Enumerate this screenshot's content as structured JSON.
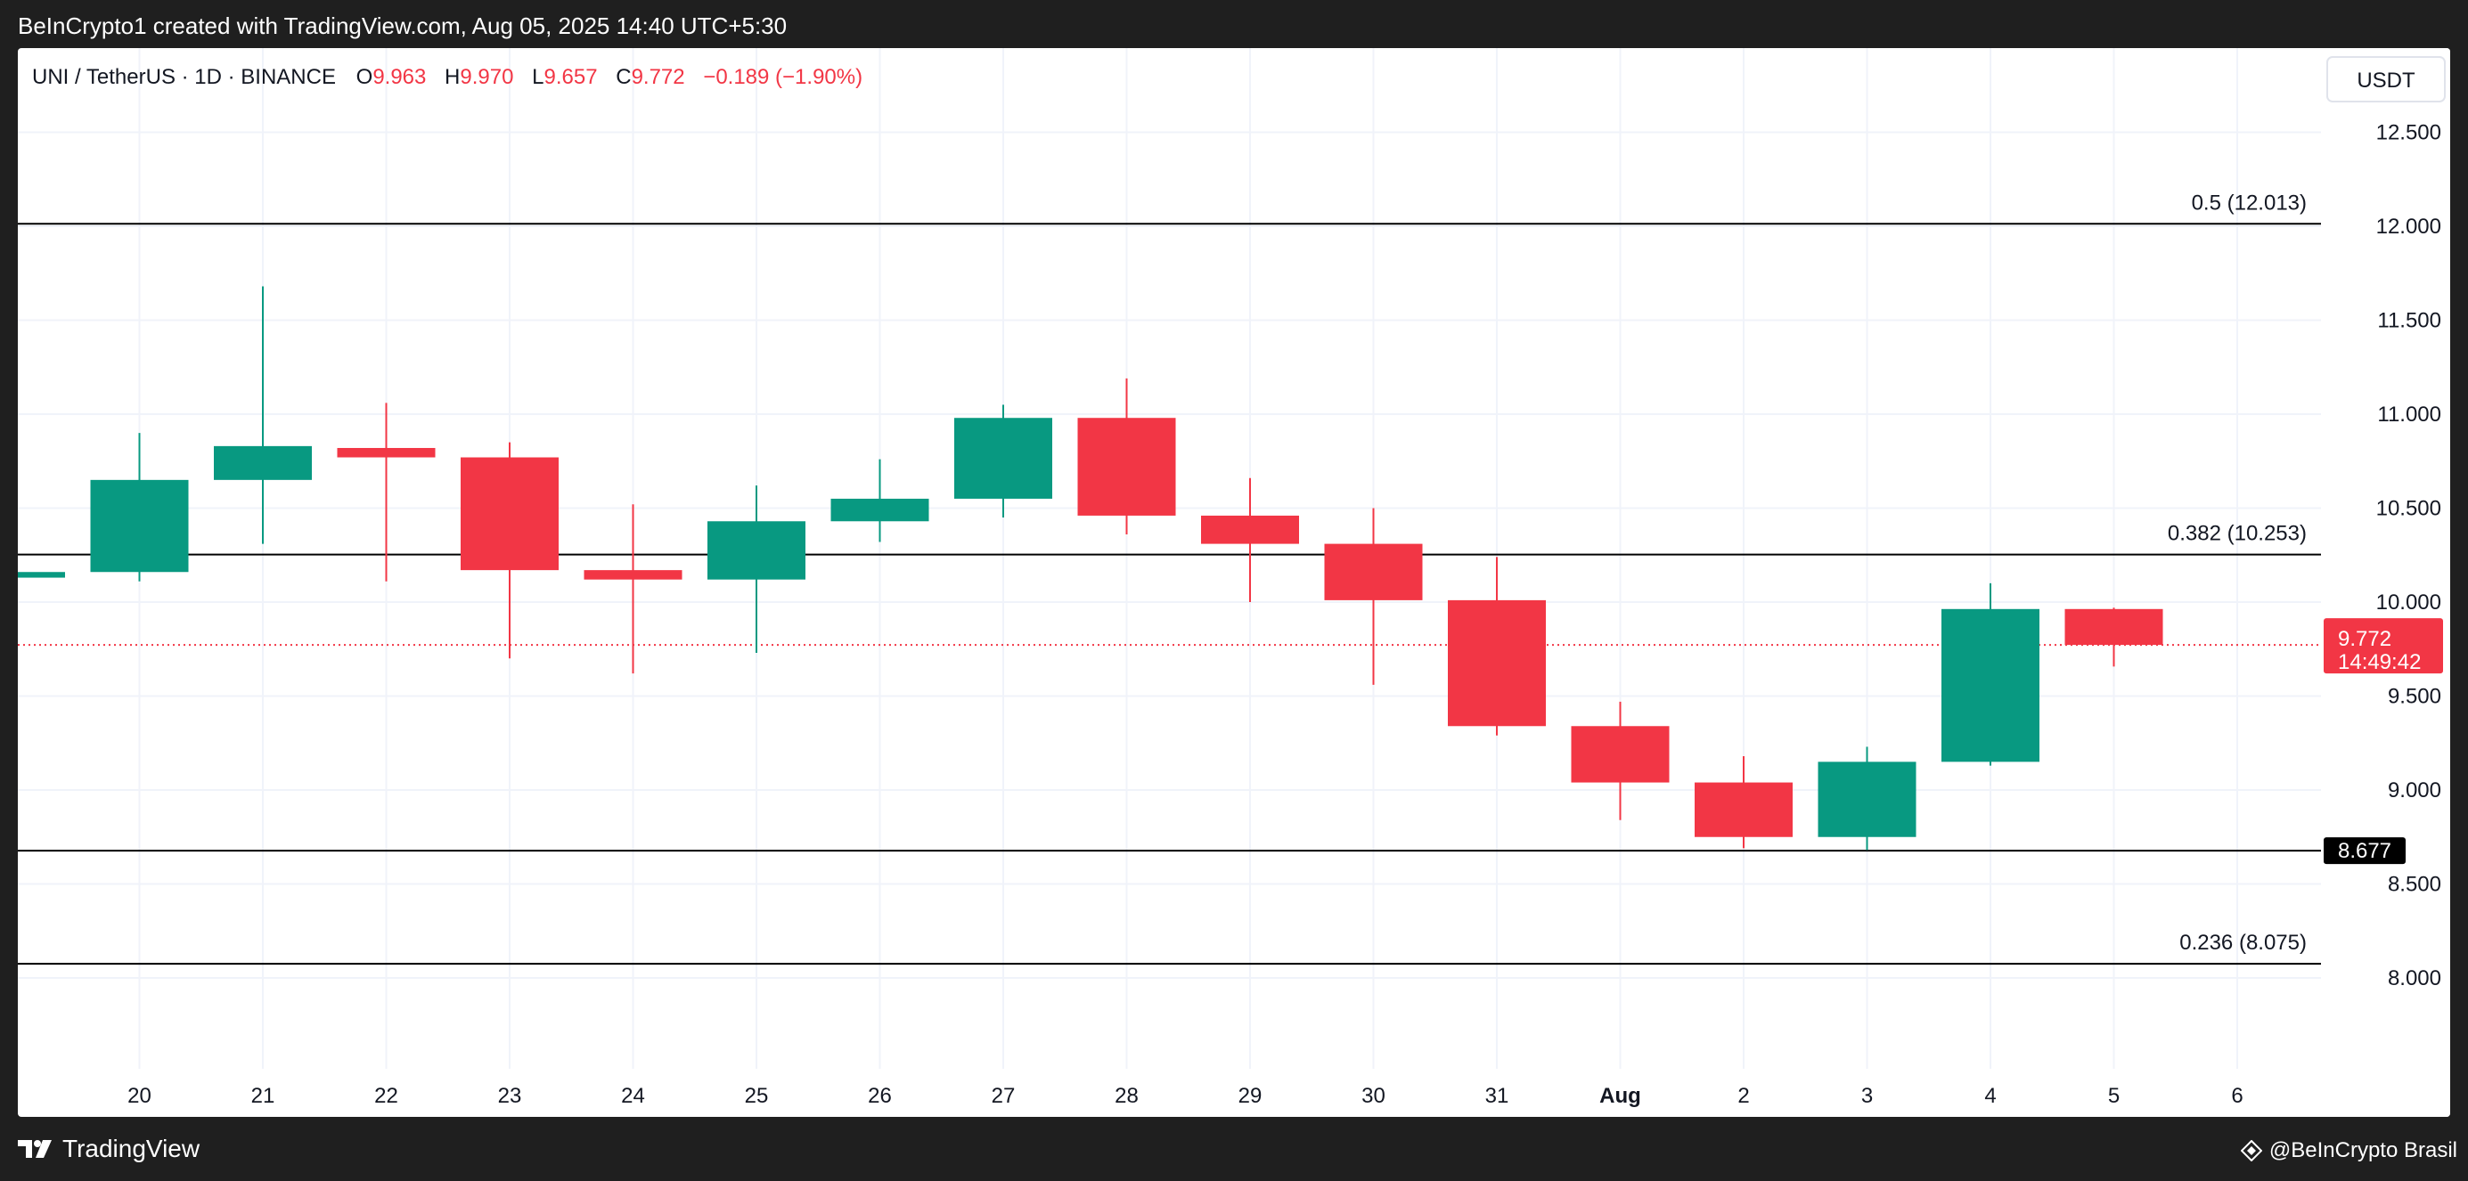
{
  "header": {
    "attribution": "BeInCrypto1 created with TradingView.com, Aug 05, 2025 14:40 UTC+5:30"
  },
  "legend": {
    "symbol": "UNI / TetherUS · 1D · BINANCE",
    "o_label": "O",
    "o_value": "9.963",
    "h_label": "H",
    "h_value": "9.970",
    "l_label": "L",
    "l_value": "9.657",
    "c_label": "C",
    "c_value": "9.772",
    "change": "−0.189 (−1.90%)"
  },
  "price_axis": {
    "currency": "USDT",
    "ticks": [
      "12.500",
      "12.000",
      "11.500",
      "11.000",
      "10.500",
      "10.000",
      "9.500",
      "9.000",
      "8.500",
      "8.000"
    ],
    "current_price": "9.772",
    "countdown": "14:49:42",
    "support_label": "8.677"
  },
  "fib_levels": [
    {
      "label": "0.5 (12.013)",
      "value": 12.013
    },
    {
      "label": "0.382 (10.253)",
      "value": 10.253
    },
    {
      "label": "0.236 (8.075)",
      "value": 8.075
    }
  ],
  "footer": {
    "brand": "TradingView",
    "credit": "@BeInCrypto Brasil"
  },
  "colors": {
    "up": "#089981",
    "down": "#f23645",
    "line": "#000000",
    "grid": "#f0f3fa",
    "text": "#131722"
  },
  "chart_data": {
    "type": "candlestick",
    "symbol": "UNI / TetherUS",
    "interval": "1D",
    "exchange": "BINANCE",
    "ylim": [
      7.5,
      12.75
    ],
    "x_ticks": [
      "20",
      "21",
      "22",
      "23",
      "24",
      "25",
      "26",
      "27",
      "28",
      "29",
      "30",
      "31",
      "Aug",
      "2",
      "3",
      "4",
      "5",
      "6"
    ],
    "candles": [
      {
        "date": "Jul 19",
        "open": 10.13,
        "high": 10.16,
        "low": 10.1,
        "close": 10.16
      },
      {
        "date": "Jul 20",
        "open": 10.16,
        "high": 10.9,
        "low": 10.11,
        "close": 10.65
      },
      {
        "date": "Jul 21",
        "open": 10.65,
        "high": 11.68,
        "low": 10.31,
        "close": 10.83
      },
      {
        "date": "Jul 22",
        "open": 10.82,
        "high": 11.06,
        "low": 10.11,
        "close": 10.77
      },
      {
        "date": "Jul 23",
        "open": 10.77,
        "high": 10.85,
        "low": 9.7,
        "close": 10.17
      },
      {
        "date": "Jul 24",
        "open": 10.17,
        "high": 10.52,
        "low": 9.62,
        "close": 10.12
      },
      {
        "date": "Jul 25",
        "open": 10.12,
        "high": 10.62,
        "low": 9.73,
        "close": 10.43
      },
      {
        "date": "Jul 26",
        "open": 10.43,
        "high": 10.76,
        "low": 10.32,
        "close": 10.55
      },
      {
        "date": "Jul 27",
        "open": 10.55,
        "high": 11.05,
        "low": 10.45,
        "close": 10.98
      },
      {
        "date": "Jul 28",
        "open": 10.98,
        "high": 11.19,
        "low": 10.36,
        "close": 10.46
      },
      {
        "date": "Jul 29",
        "open": 10.46,
        "high": 10.66,
        "low": 10.0,
        "close": 10.31
      },
      {
        "date": "Jul 30",
        "open": 10.31,
        "high": 10.5,
        "low": 9.56,
        "close": 10.01
      },
      {
        "date": "Jul 31",
        "open": 10.01,
        "high": 10.24,
        "low": 9.29,
        "close": 9.34
      },
      {
        "date": "Aug 1",
        "open": 9.34,
        "high": 9.47,
        "low": 8.84,
        "close": 9.04
      },
      {
        "date": "Aug 2",
        "open": 9.04,
        "high": 9.18,
        "low": 8.69,
        "close": 8.75
      },
      {
        "date": "Aug 3",
        "open": 8.75,
        "high": 9.23,
        "low": 8.68,
        "close": 9.15
      },
      {
        "date": "Aug 4",
        "open": 9.15,
        "high": 10.1,
        "low": 9.13,
        "close": 9.963
      },
      {
        "date": "Aug 5",
        "open": 9.963,
        "high": 9.97,
        "low": 9.657,
        "close": 9.772
      }
    ],
    "horizontal_lines": [
      {
        "label": "0.5 (12.013)",
        "value": 12.013
      },
      {
        "label": "0.382 (10.253)",
        "value": 10.253
      },
      {
        "label": "8.677",
        "value": 8.677
      },
      {
        "label": "0.236 (8.075)",
        "value": 8.075
      }
    ],
    "last_price": 9.772,
    "grid": true
  }
}
